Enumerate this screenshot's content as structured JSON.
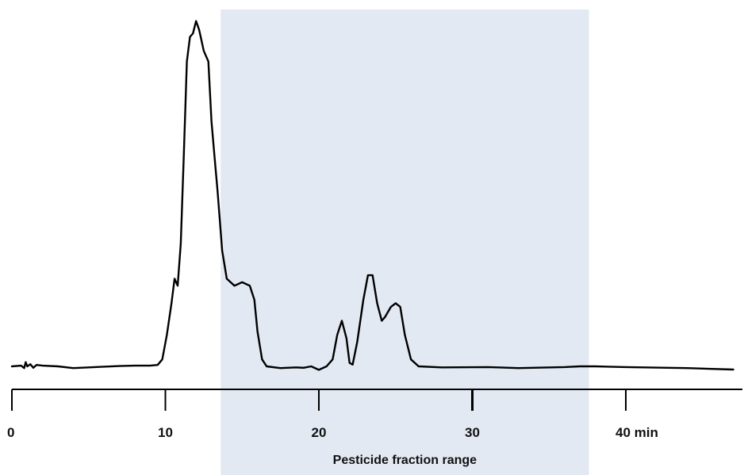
{
  "chart_data": {
    "type": "line",
    "title": "",
    "xlabel": "",
    "ylabel": "",
    "x_unit": "min",
    "xlim": [
      0,
      47
    ],
    "ylim": [
      0,
      1.0
    ],
    "grid": false,
    "ticks": [
      {
        "value": 0,
        "label": "0"
      },
      {
        "value": 10,
        "label": "10"
      },
      {
        "value": 20,
        "label": "20"
      },
      {
        "value": 30,
        "label": "30"
      },
      {
        "value": 40,
        "label": "40 min"
      }
    ],
    "highlight_band": {
      "x_start": 13.6,
      "x_end": 37.6,
      "label": "Pesticide fraction range",
      "color": "#e3e9f3"
    },
    "series": [
      {
        "line_color": "#000000",
        "points": [
          [
            0,
            0.0
          ],
          [
            0.6,
            0.002
          ],
          [
            0.8,
            -0.005
          ],
          [
            0.9,
            0.012
          ],
          [
            1.0,
            0.0
          ],
          [
            1.2,
            0.006
          ],
          [
            1.4,
            -0.004
          ],
          [
            1.6,
            0.004
          ],
          [
            2.0,
            0.002
          ],
          [
            3.0,
            0.0
          ],
          [
            4.0,
            -0.005
          ],
          [
            5.0,
            -0.003
          ],
          [
            6.0,
            -0.001
          ],
          [
            7.0,
            0.001
          ],
          [
            8.0,
            0.002
          ],
          [
            9.0,
            0.002
          ],
          [
            9.5,
            0.004
          ],
          [
            9.8,
            0.02
          ],
          [
            10.1,
            0.09
          ],
          [
            10.4,
            0.18
          ],
          [
            10.6,
            0.25
          ],
          [
            10.8,
            0.23
          ],
          [
            11.0,
            0.35
          ],
          [
            11.2,
            0.6
          ],
          [
            11.4,
            0.87
          ],
          [
            11.6,
            0.94
          ],
          [
            11.8,
            0.95
          ],
          [
            12.0,
            0.985
          ],
          [
            12.2,
            0.96
          ],
          [
            12.5,
            0.9
          ],
          [
            12.8,
            0.87
          ],
          [
            13.0,
            0.7
          ],
          [
            13.2,
            0.6
          ],
          [
            13.4,
            0.5
          ],
          [
            13.7,
            0.33
          ],
          [
            14.0,
            0.25
          ],
          [
            14.5,
            0.23
          ],
          [
            15.0,
            0.24
          ],
          [
            15.5,
            0.23
          ],
          [
            15.8,
            0.19
          ],
          [
            16.0,
            0.1
          ],
          [
            16.3,
            0.02
          ],
          [
            16.6,
            0.0
          ],
          [
            17.5,
            -0.005
          ],
          [
            18.5,
            -0.003
          ],
          [
            19.0,
            -0.004
          ],
          [
            19.5,
            0.0
          ],
          [
            20.0,
            -0.01
          ],
          [
            20.5,
            0.0
          ],
          [
            20.9,
            0.02
          ],
          [
            21.2,
            0.09
          ],
          [
            21.5,
            0.13
          ],
          [
            21.8,
            0.08
          ],
          [
            22.0,
            0.01
          ],
          [
            22.2,
            0.005
          ],
          [
            22.5,
            0.07
          ],
          [
            22.9,
            0.19
          ],
          [
            23.2,
            0.26
          ],
          [
            23.5,
            0.26
          ],
          [
            23.8,
            0.18
          ],
          [
            24.1,
            0.13
          ],
          [
            24.3,
            0.14
          ],
          [
            24.7,
            0.17
          ],
          [
            25.0,
            0.18
          ],
          [
            25.3,
            0.17
          ],
          [
            25.6,
            0.09
          ],
          [
            26.0,
            0.02
          ],
          [
            26.5,
            0.0
          ],
          [
            28.0,
            -0.003
          ],
          [
            31.0,
            -0.002
          ],
          [
            33.0,
            -0.005
          ],
          [
            36.0,
            -0.002
          ],
          [
            37.0,
            0.0
          ],
          [
            38.0,
            0.0
          ],
          [
            40.0,
            -0.002
          ],
          [
            44.0,
            -0.005
          ],
          [
            47.0,
            -0.009
          ]
        ]
      }
    ]
  }
}
